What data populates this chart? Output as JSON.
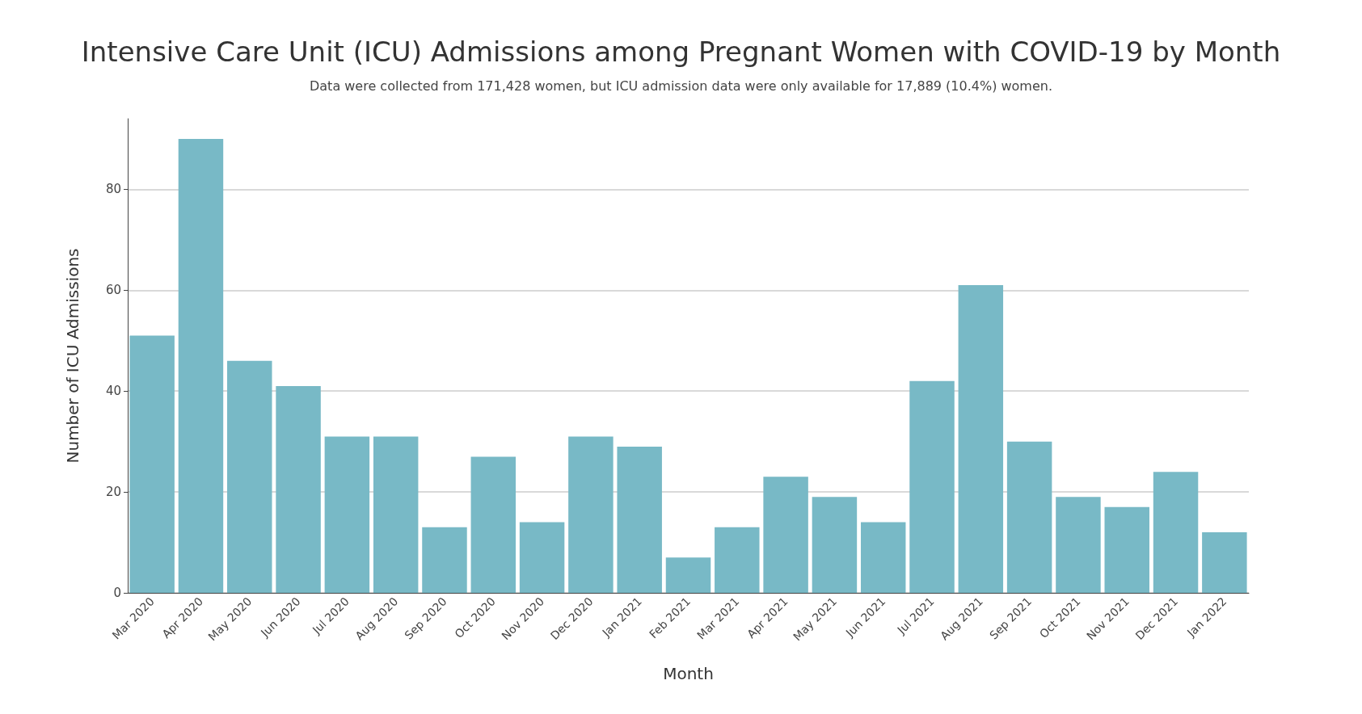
{
  "chart_data": {
    "type": "bar",
    "title": "Intensive Care Unit (ICU) Admissions among Pregnant Women with COVID-19 by Month",
    "subtitle": "Data were collected from 171,428 women, but ICU admission data were only available for 17,889 (10.4%) women.",
    "xlabel": "Month",
    "ylabel": "Number of ICU Admissions",
    "categories": [
      "Mar 2020",
      "Apr 2020",
      "May 2020",
      "Jun 2020",
      "Jul 2020",
      "Aug 2020",
      "Sep 2020",
      "Oct 2020",
      "Nov 2020",
      "Dec 2020",
      "Jan 2021",
      "Feb 2021",
      "Mar 2021",
      "Apr 2021",
      "May 2021",
      "Jun 2021",
      "Jul 2021",
      "Aug 2021",
      "Sep 2021",
      "Oct 2021",
      "Nov 2021",
      "Dec 2021",
      "Jan 2022"
    ],
    "values": [
      51,
      90,
      46,
      41,
      31,
      31,
      13,
      27,
      14,
      31,
      29,
      7,
      13,
      23,
      19,
      14,
      42,
      61,
      30,
      19,
      17,
      24,
      12
    ],
    "color": "#78b9c6",
    "ylim": [
      0,
      94
    ],
    "yticks": [
      0,
      20,
      40,
      60,
      80
    ],
    "grid": "y"
  }
}
